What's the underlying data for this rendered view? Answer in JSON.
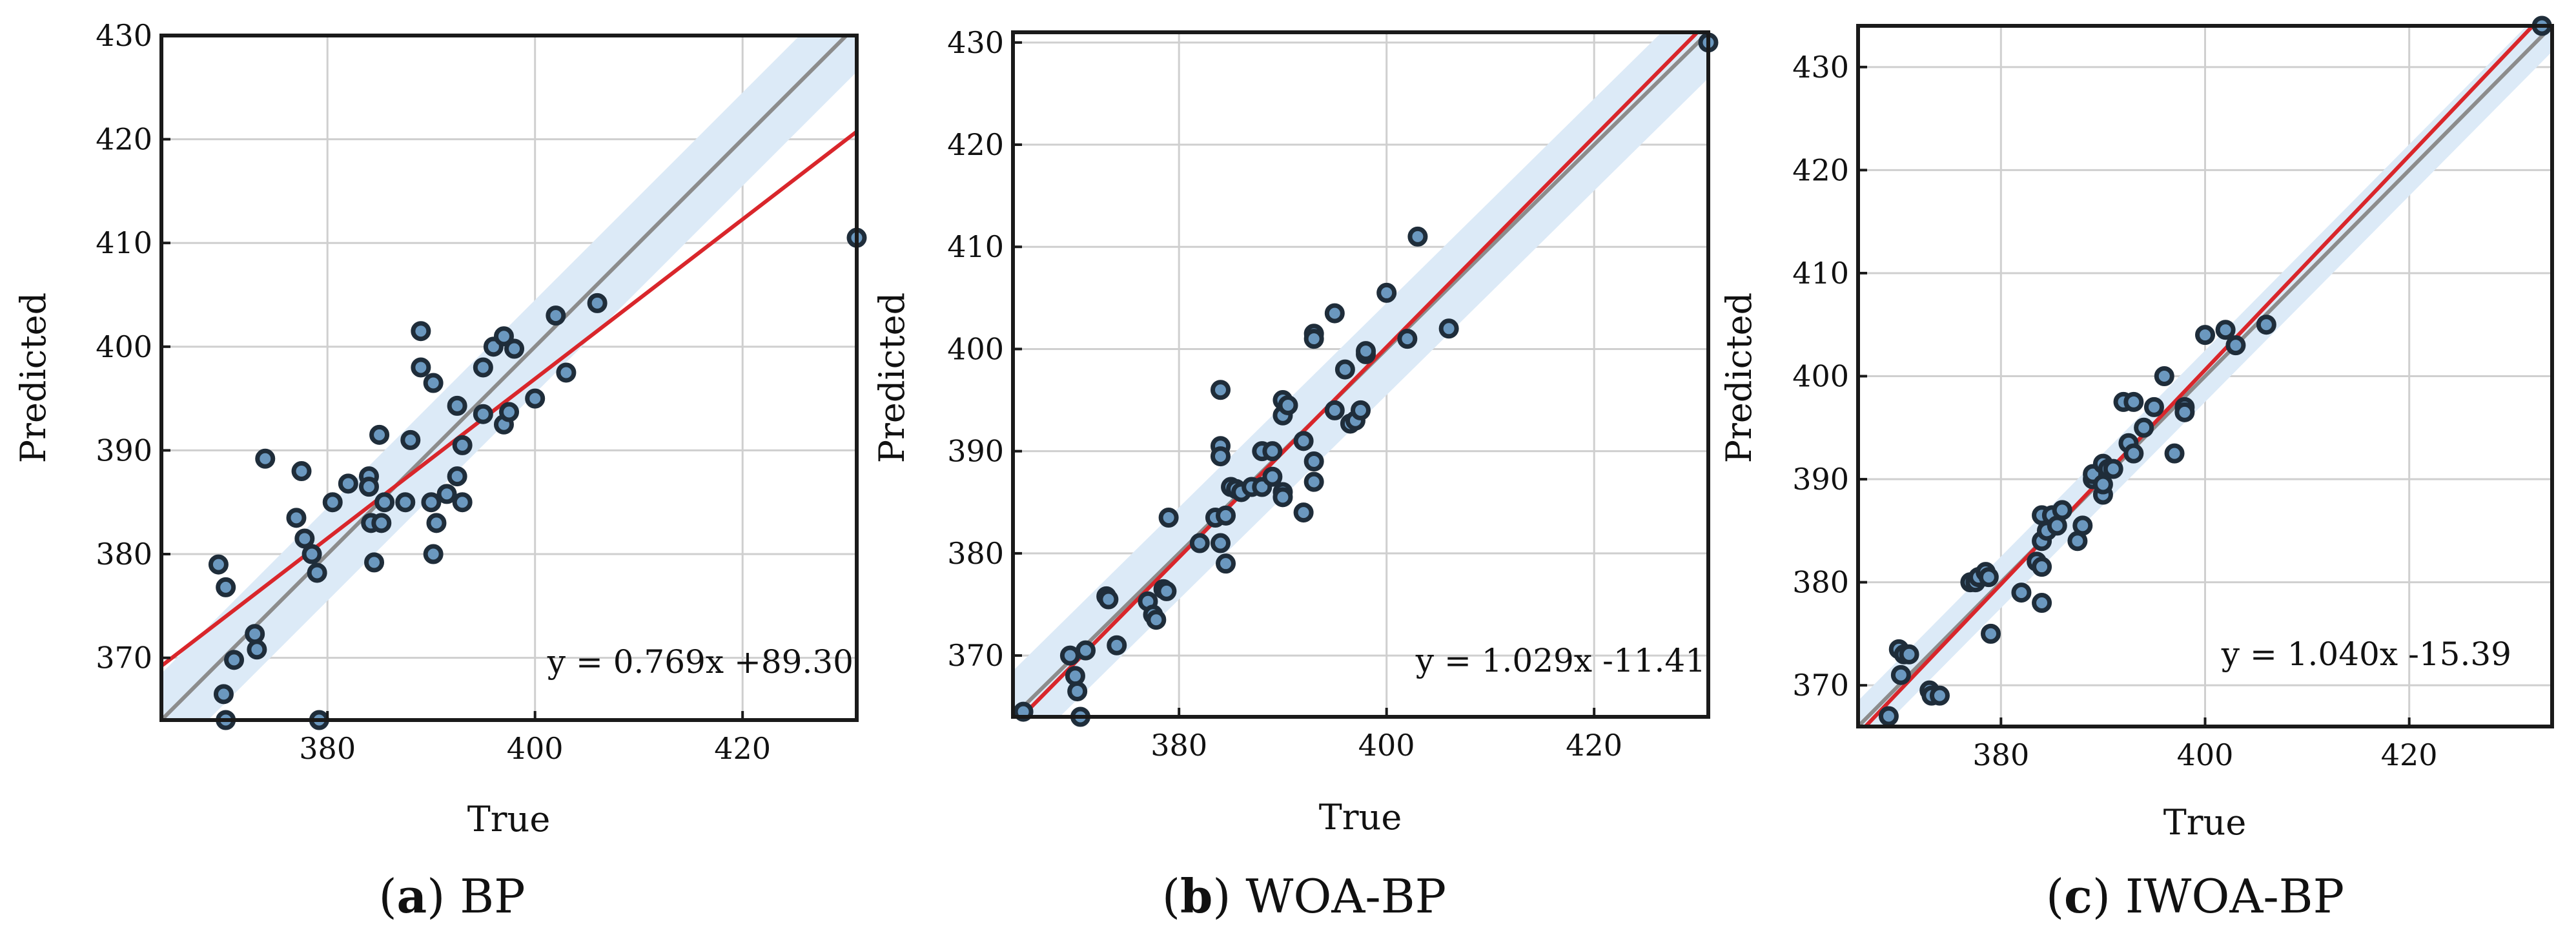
{
  "colors": {
    "band": "#dceaf7",
    "identity_line": "#8c8c8c",
    "fit_line": "#d9262b",
    "marker_fill": "#6b98bf",
    "marker_edge": "#1f2d3a",
    "grid": "#cfcfcf",
    "frame": "#1a1a1a"
  },
  "chart_data": [
    {
      "type": "scatter",
      "panel_letter": "a",
      "panel_name": "BP",
      "caption_open": "(",
      "caption_close": ")",
      "xlabel": "True",
      "ylabel": "Predicted",
      "xlim": [
        364,
        431
      ],
      "ylim": [
        364,
        430
      ],
      "xticks": [
        380,
        400,
        420
      ],
      "yticks": [
        370,
        380,
        390,
        400,
        410,
        420,
        430
      ],
      "grid": true,
      "band_halfwidth": 4.5,
      "fit": {
        "slope": 0.769,
        "intercept": 89.3
      },
      "equation": "y = 0.769x +89.30",
      "x": [
        369.5,
        370.2,
        371.0,
        373.0,
        373.2,
        374.0,
        377.0,
        377.5,
        377.8,
        378.5,
        379.0,
        379.2,
        380.5,
        382.0,
        384.0,
        384.0,
        384.2,
        384.5,
        385.0,
        385.2,
        385.5,
        387.5,
        388.0,
        389.0,
        389.0,
        390.0,
        390.2,
        390.2,
        390.5,
        391.5,
        392.5,
        392.5,
        393.0,
        393.0,
        395.0,
        395.0,
        396.0,
        397.0,
        397.0,
        397.5,
        398.0,
        400.0,
        402.0,
        403.0,
        406.0,
        370.0,
        370.2,
        431.0
      ],
      "y": [
        379.0,
        376.8,
        369.8,
        372.3,
        370.8,
        389.2,
        383.5,
        388.0,
        381.5,
        380.0,
        378.2,
        364.0,
        385.0,
        386.8,
        387.5,
        386.5,
        383.0,
        379.2,
        391.5,
        383.0,
        385.0,
        385.0,
        391.0,
        401.5,
        398.0,
        385.0,
        396.5,
        380.0,
        383.0,
        385.8,
        387.5,
        394.3,
        390.5,
        385.0,
        393.5,
        398.0,
        400.0,
        392.5,
        401.0,
        393.7,
        399.8,
        395.0,
        403.0,
        397.5,
        404.2,
        366.5,
        364.0,
        410.5
      ]
    },
    {
      "type": "scatter",
      "panel_letter": "b",
      "panel_name": "WOA-BP",
      "caption_open": "(",
      "caption_close": ")",
      "xlabel": "True",
      "ylabel": "Predicted",
      "xlim": [
        364,
        431
      ],
      "ylim": [
        364,
        431
      ],
      "xticks": [
        380,
        400,
        420
      ],
      "yticks": [
        370,
        380,
        390,
        400,
        410,
        420,
        430
      ],
      "grid": true,
      "band_halfwidth": 4.5,
      "fit": {
        "slope": 1.029,
        "intercept": -11.41
      },
      "equation": "y = 1.029x -11.41",
      "x": [
        365.0,
        369.5,
        370.0,
        370.2,
        370.5,
        371.0,
        373.0,
        373.2,
        374.0,
        377.0,
        377.5,
        377.8,
        378.5,
        378.8,
        379.0,
        382.0,
        383.5,
        384.0,
        384.0,
        384.0,
        384.0,
        384.5,
        384.5,
        385.0,
        385.5,
        386.0,
        387.0,
        388.0,
        388.0,
        389.0,
        389.0,
        390.0,
        390.0,
        390.0,
        390.0,
        390.5,
        392.0,
        392.0,
        393.0,
        393.0,
        393.0,
        393.0,
        395.0,
        395.0,
        396.0,
        396.5,
        397.0,
        397.5,
        398.0,
        398.0,
        400.0,
        402.0,
        403.0,
        406.0,
        431.0
      ],
      "y": [
        364.5,
        370.0,
        368.0,
        366.5,
        364.0,
        370.5,
        375.8,
        375.5,
        371.0,
        375.3,
        374.0,
        373.5,
        376.5,
        376.3,
        383.5,
        381.0,
        383.5,
        396.0,
        390.5,
        389.5,
        381.0,
        379.0,
        383.7,
        386.5,
        386.3,
        386.0,
        386.5,
        390.0,
        386.5,
        387.5,
        390.0,
        393.5,
        395.0,
        386.0,
        385.5,
        394.5,
        391.0,
        384.0,
        389.0,
        387.0,
        401.5,
        401.0,
        394.0,
        403.5,
        398.0,
        392.7,
        393.0,
        394.0,
        399.5,
        399.8,
        405.5,
        401.0,
        411.0,
        402.0,
        430.0
      ]
    },
    {
      "type": "scatter",
      "panel_letter": "c",
      "panel_name": "IWOA-BP",
      "caption_open": "(",
      "caption_close": ")",
      "xlabel": "True",
      "ylabel": "Predicted",
      "xlim": [
        366,
        434
      ],
      "ylim": [
        366,
        434
      ],
      "xticks": [
        380,
        400,
        420
      ],
      "yticks": [
        370,
        380,
        390,
        400,
        410,
        420,
        430
      ],
      "grid": true,
      "band_halfwidth": 2.5,
      "fit": {
        "slope": 1.04,
        "intercept": -15.39
      },
      "equation": "y = 1.040x -15.39",
      "x": [
        369.0,
        370.0,
        370.2,
        370.5,
        371.0,
        373.0,
        373.2,
        374.0,
        377.0,
        377.5,
        377.8,
        378.5,
        378.8,
        379.0,
        382.0,
        383.5,
        384.0,
        384.0,
        384.0,
        384.0,
        384.5,
        385.0,
        385.5,
        386.0,
        387.5,
        388.0,
        389.0,
        389.0,
        390.0,
        390.0,
        390.0,
        390.5,
        391.0,
        392.0,
        392.5,
        393.0,
        393.0,
        394.0,
        395.0,
        396.0,
        397.0,
        398.0,
        398.0,
        400.0,
        402.0,
        403.0,
        406.0,
        433.0
      ],
      "y": [
        367.0,
        373.5,
        371.0,
        373.0,
        373.0,
        369.5,
        369.0,
        369.0,
        380.0,
        380.0,
        380.5,
        381.0,
        380.5,
        375.0,
        379.0,
        382.0,
        386.5,
        384.0,
        381.5,
        378.0,
        385.0,
        386.5,
        385.5,
        387.0,
        384.0,
        385.5,
        390.0,
        390.5,
        388.5,
        391.5,
        389.5,
        391.0,
        391.0,
        397.5,
        393.5,
        392.5,
        397.5,
        395.0,
        397.0,
        400.0,
        392.5,
        397.0,
        396.5,
        404.0,
        404.5,
        403.0,
        405.0,
        434.0
      ]
    }
  ]
}
